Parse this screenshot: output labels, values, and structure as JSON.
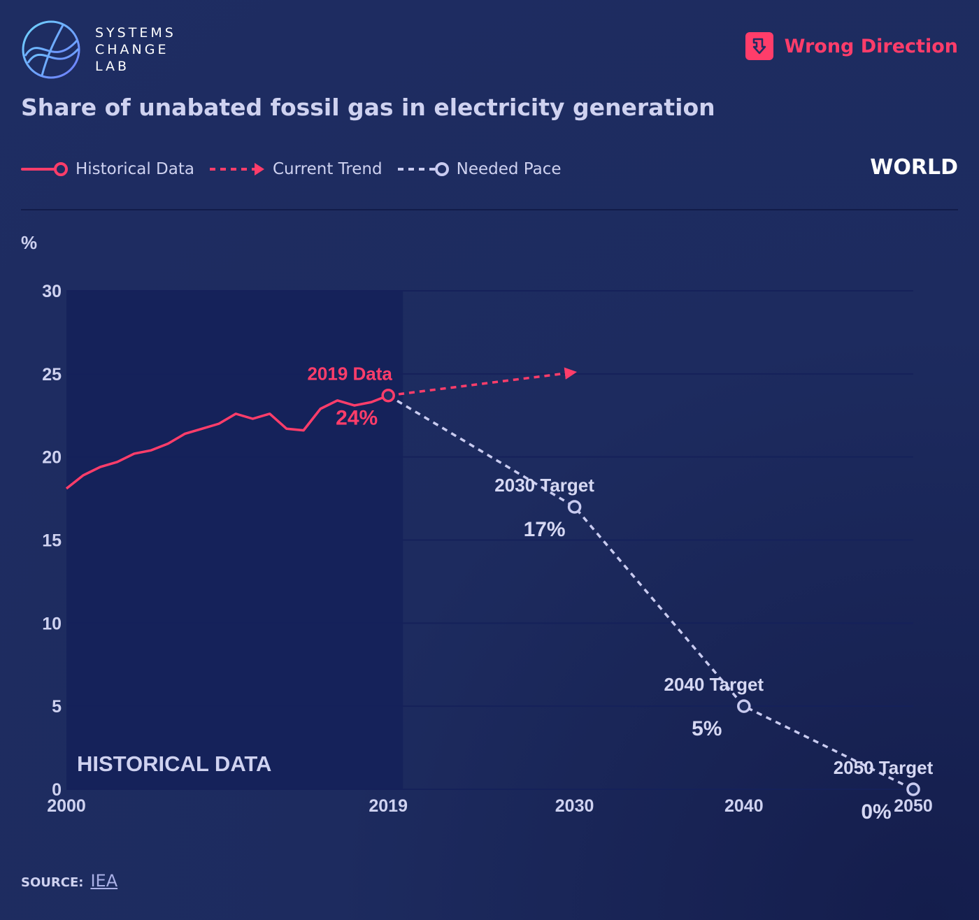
{
  "brand": {
    "logo_lines": [
      "SYSTEMS",
      "CHANGE",
      "LAB"
    ]
  },
  "status": {
    "label": "Wrong Direction",
    "icon": "down-arrow-icon",
    "color": "#ff3d6a"
  },
  "title": "Share of unabated fossil gas in electricity generation",
  "legend": {
    "historical": "Historical Data",
    "trend": "Current Trend",
    "needed": "Needed Pace"
  },
  "region": "WORLD",
  "colors": {
    "historical": "#ff3d6a",
    "needed": "#c9cbf0",
    "grid": "#15215a",
    "shade": "#15225a"
  },
  "chart_data": {
    "type": "line",
    "title": "Share of unabated fossil gas in electricity generation",
    "ylabel": "%",
    "xlabel": "",
    "xlim": [
      2000,
      2050
    ],
    "ylim": [
      0,
      30
    ],
    "y_ticks": [
      0,
      5,
      10,
      15,
      20,
      25,
      30
    ],
    "x_ticks": [
      2000,
      2019,
      2030,
      2040,
      2050
    ],
    "shaded_region_label": "HISTORICAL DATA",
    "shaded_region": [
      2000,
      2019
    ],
    "series": [
      {
        "name": "Historical Data",
        "style": "solid",
        "x": [
          2000,
          2001,
          2002,
          2003,
          2004,
          2005,
          2006,
          2007,
          2008,
          2009,
          2010,
          2011,
          2012,
          2013,
          2014,
          2015,
          2016,
          2017,
          2018,
          2019
        ],
        "y": [
          18.1,
          18.9,
          19.4,
          19.7,
          20.2,
          20.4,
          20.8,
          21.4,
          21.7,
          22.0,
          22.6,
          22.3,
          22.6,
          21.7,
          21.6,
          22.9,
          23.4,
          23.1,
          23.3,
          23.7
        ]
      },
      {
        "name": "Current Trend",
        "style": "dashed-arrow",
        "x": [
          2019,
          2030
        ],
        "y": [
          23.7,
          25.1
        ]
      },
      {
        "name": "Needed Pace",
        "style": "dashed",
        "x": [
          2019,
          2030,
          2040,
          2050
        ],
        "y": [
          23.7,
          17,
          5,
          0
        ]
      }
    ],
    "annotations": [
      {
        "label": "2019 Data",
        "value": "24%",
        "x": 2019,
        "y": 23.7,
        "kind": "historical"
      },
      {
        "label": "2030 Target",
        "value": "17%",
        "x": 2030,
        "y": 17,
        "kind": "target"
      },
      {
        "label": "2040 Target",
        "value": "5%",
        "x": 2040,
        "y": 5,
        "kind": "target"
      },
      {
        "label": "2050 Target",
        "value": "0%",
        "x": 2050,
        "y": 0,
        "kind": "target"
      }
    ]
  },
  "source": {
    "label": "SOURCE:",
    "link": "IEA"
  }
}
